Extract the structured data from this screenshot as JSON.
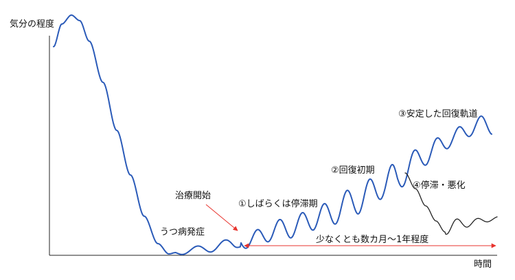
{
  "axes": {
    "y_label": "気分の程度",
    "x_label": "時間"
  },
  "annotations": {
    "onset": "うつ病発症",
    "treatment_start": "治療開始",
    "phase1": "①しばらくは停滞期",
    "phase2": "②回復初期",
    "phase3": "③安定した回復軌道",
    "phase4": "④停滞・悪化",
    "duration": "少なくとも数カ月〜1年程度"
  },
  "colors": {
    "main_curve": "#2a5ab8",
    "relapse_curve": "#222222",
    "arrow": "#e8332d",
    "axis": "#222222"
  }
}
